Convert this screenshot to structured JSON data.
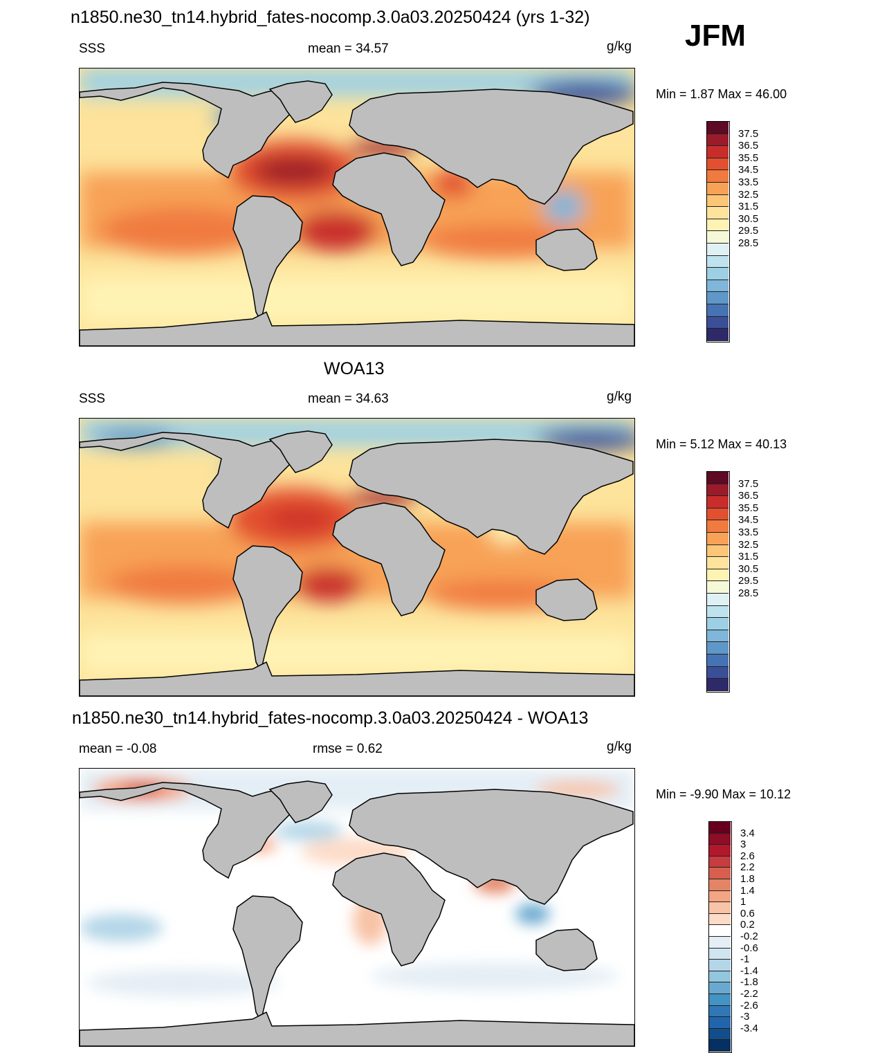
{
  "season": "JFM",
  "panels": [
    {
      "title": "n1850.ne30_tn14.hybrid_fates-nocomp.3.0a03.20250424 (yrs 1-32)",
      "left_label": "SSS",
      "center_label": "mean =  34.57",
      "units": "g/kg",
      "minmax": "Min =   1.87 Max =  46.00",
      "colorbar": {
        "ticks": [
          "37.5",
          "36.5",
          "35.5",
          "34.5",
          "33.5",
          "32.5",
          "31.5",
          "30.5",
          "29.5",
          "28.5"
        ],
        "colors": [
          "#5e0a24",
          "#9b1b2a",
          "#c92d2b",
          "#e2502f",
          "#f07a3f",
          "#f7a257",
          "#fbc677",
          "#fde39b",
          "#fff3b4",
          "#f6f9d7",
          "#dff1f5",
          "#bfe3ee",
          "#9dd0e5",
          "#7fb6d9",
          "#5f97c8",
          "#4673b3",
          "#3b4f98",
          "#2e2a6a"
        ]
      }
    },
    {
      "title": "WOA13",
      "left_label": "SSS",
      "center_label": "mean =  34.63",
      "units": "g/kg",
      "minmax": "Min =   5.12 Max =  40.13",
      "colorbar": {
        "ticks": [
          "37.5",
          "36.5",
          "35.5",
          "34.5",
          "33.5",
          "32.5",
          "31.5",
          "30.5",
          "29.5",
          "28.5"
        ],
        "colors": [
          "#5e0a24",
          "#9b1b2a",
          "#c92d2b",
          "#e2502f",
          "#f07a3f",
          "#f7a257",
          "#fbc677",
          "#fde39b",
          "#fff3b4",
          "#f6f9d7",
          "#dff1f5",
          "#bfe3ee",
          "#9dd0e5",
          "#7fb6d9",
          "#5f97c8",
          "#4673b3",
          "#3b4f98",
          "#2e2a6a"
        ]
      }
    },
    {
      "title": "n1850.ne30_tn14.hybrid_fates-nocomp.3.0a03.20250424 - WOA13",
      "left_label": "mean =  -0.08",
      "center_label": "rmse =   0.62",
      "units": "g/kg",
      "minmax": "Min =  -9.90 Max =  10.12",
      "colorbar": {
        "ticks": [
          "3.4",
          "3",
          "2.6",
          "2.2",
          "1.8",
          "1.4",
          "1",
          "0.6",
          "0.2",
          "-0.2",
          "-0.6",
          "-1",
          "-1.4",
          "-1.8",
          "-2.2",
          "-2.6",
          "-3",
          "-3.4"
        ],
        "colors": [
          "#67001f",
          "#8e0d27",
          "#b2182b",
          "#c63c3f",
          "#d6604d",
          "#e48466",
          "#f4a582",
          "#f8c3a6",
          "#fddbc7",
          "#ffffff",
          "#e4eef5",
          "#d1e5f0",
          "#b4d6e8",
          "#92c5de",
          "#6aa9cf",
          "#4393c3",
          "#2f78b5",
          "#2166ac",
          "#124e8c",
          "#053061"
        ]
      }
    }
  ]
}
